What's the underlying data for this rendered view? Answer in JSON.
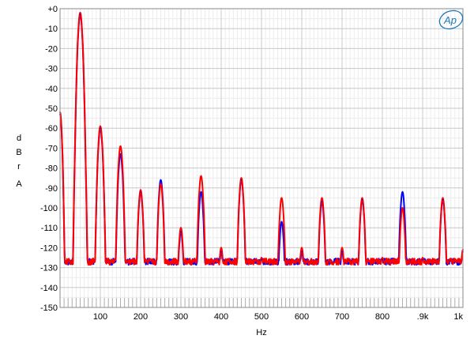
{
  "logo": {
    "text": "Ap",
    "color": "#1f7ab5"
  },
  "chart_data": {
    "type": "line",
    "xlabel": "Hz",
    "ylabel_letters": [
      "d",
      "B",
      "r",
      "A"
    ],
    "xlim": [
      0,
      1000
    ],
    "ylim": [
      -150,
      0
    ],
    "grid": true,
    "y_ticks": [
      0,
      -10,
      -20,
      -30,
      -40,
      -50,
      -60,
      -70,
      -80,
      -90,
      -100,
      -110,
      -120,
      -130,
      -140,
      -150
    ],
    "y_tick_labels": [
      "+0",
      "-10",
      "-20",
      "-30",
      "-40",
      "-50",
      "-60",
      "-70",
      "-80",
      "-90",
      "-100",
      "-110",
      "-120",
      "-130",
      "-140",
      "-150"
    ],
    "x_ticks": [
      100,
      200,
      300,
      400,
      500,
      600,
      700,
      800,
      900,
      1000
    ],
    "x_tick_labels": [
      "100",
      "200",
      "300",
      "400",
      "500",
      "600",
      "700",
      "800",
      ".9k",
      "1k"
    ],
    "noise_floor": -127,
    "series": [
      {
        "color": "#0000ff",
        "peaks": [
          {
            "f": 0,
            "db": -53
          },
          {
            "f": 50,
            "db": -3
          },
          {
            "f": 100,
            "db": -60
          },
          {
            "f": 150,
            "db": -73
          },
          {
            "f": 200,
            "db": -92
          },
          {
            "f": 250,
            "db": -86
          },
          {
            "f": 300,
            "db": -112
          },
          {
            "f": 350,
            "db": -92
          },
          {
            "f": 400,
            "db": -122
          },
          {
            "f": 450,
            "db": -86
          },
          {
            "f": 500,
            "db": -126
          },
          {
            "f": 550,
            "db": -107
          },
          {
            "f": 600,
            "db": -122
          },
          {
            "f": 650,
            "db": -97
          },
          {
            "f": 700,
            "db": -122
          },
          {
            "f": 750,
            "db": -96
          },
          {
            "f": 800,
            "db": -126
          },
          {
            "f": 850,
            "db": -92
          },
          {
            "f": 900,
            "db": -126
          },
          {
            "f": 950,
            "db": -96
          },
          {
            "f": 1000,
            "db": -122
          }
        ]
      },
      {
        "color": "#ff0000",
        "peaks": [
          {
            "f": 0,
            "db": -52
          },
          {
            "f": 50,
            "db": -2
          },
          {
            "f": 100,
            "db": -59
          },
          {
            "f": 150,
            "db": -69
          },
          {
            "f": 200,
            "db": -91
          },
          {
            "f": 250,
            "db": -88
          },
          {
            "f": 300,
            "db": -110
          },
          {
            "f": 350,
            "db": -84
          },
          {
            "f": 400,
            "db": -120
          },
          {
            "f": 450,
            "db": -85
          },
          {
            "f": 500,
            "db": -125
          },
          {
            "f": 550,
            "db": -95
          },
          {
            "f": 600,
            "db": -120
          },
          {
            "f": 650,
            "db": -95
          },
          {
            "f": 700,
            "db": -120
          },
          {
            "f": 750,
            "db": -95
          },
          {
            "f": 800,
            "db": -125
          },
          {
            "f": 850,
            "db": -100
          },
          {
            "f": 900,
            "db": -125
          },
          {
            "f": 950,
            "db": -95
          },
          {
            "f": 1000,
            "db": -121
          }
        ]
      }
    ]
  }
}
